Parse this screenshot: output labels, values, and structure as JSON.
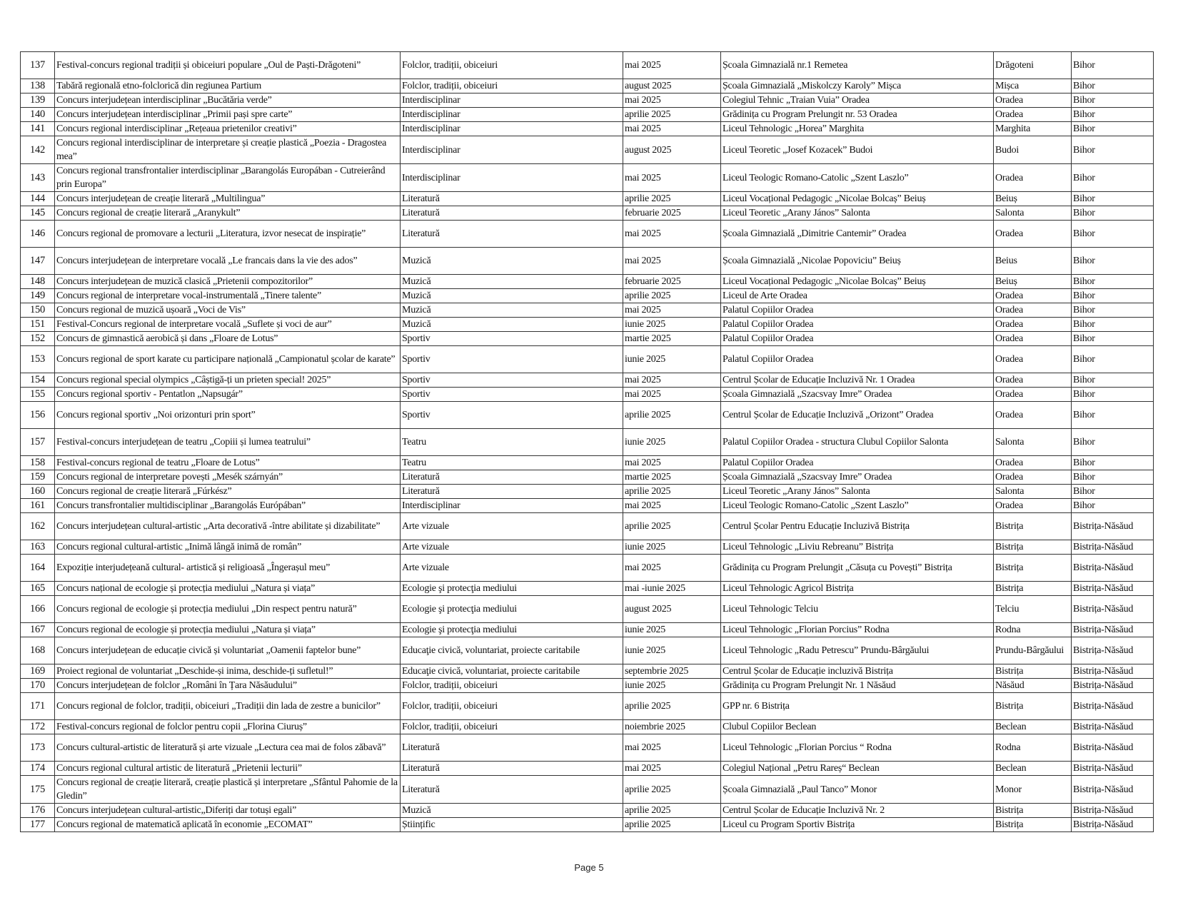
{
  "page": {
    "footer": "Page 5"
  },
  "rows": [
    [
      "137",
      "Festival-concurs regional tradiții și obiceiuri populare „Oul de Paști-Drăgoteni”",
      "Folclor, tradiții, obiceiuri",
      "mai 2025",
      "Școala Gimnazială nr.1 Remetea",
      "Drăgoteni",
      "Bihor"
    ],
    [
      "138",
      "Tabără regională etno-folclorică din regiunea Partium",
      "Folclor, tradiții, obiceiuri",
      "august 2025",
      "Școala Gimnazială „Miskolczy Karoly” Mișca",
      "Mișca",
      "Bihor"
    ],
    [
      "139",
      "Concurs interjudețean interdisciplinar „Bucătăria verde”",
      "Interdisciplinar",
      "mai 2025",
      "Colegiul Tehnic „Traian Vuia” Oradea",
      "Oradea",
      "Bihor"
    ],
    [
      "140",
      "Concurs interjudețean interdisciplinar „Primii pași spre carte”",
      "Interdisciplinar",
      "aprilie 2025",
      "Grădinița cu Program Prelungit nr. 53 Oradea",
      "Oradea",
      "Bihor"
    ],
    [
      "141",
      "Concurs regional interdisciplinar „Rețeaua prietenilor creativi”",
      "Interdisciplinar",
      "mai 2025",
      "Liceul Tehnologic „Horea” Marghita",
      "Marghita",
      "Bihor"
    ],
    [
      "142",
      "Concurs regional interdisciplinar de interpretare și creație plastică „Poezia - Dragostea mea”",
      "Interdisciplinar",
      "august 2025",
      "Liceul Teoretic „Josef Kozacek” Budoi",
      "Budoi",
      "Bihor"
    ],
    [
      "143",
      "Concurs regional transfrontalier interdisciplinar „Barangolás Europában - Cutreierând prin Europa”",
      "Interdisciplinar",
      "mai 2025",
      "Liceul Teologic Romano-Catolic „Szent Laszlo”",
      "Oradea",
      "Bihor"
    ],
    [
      "144",
      "Concurs interjudețean de creație literară „Multilingua”",
      "Literatură",
      "aprilie 2025",
      "Liceul Vocațional Pedagogic „Nicolae Bolcaș” Beiuș",
      "Beiuș",
      "Bihor"
    ],
    [
      "145",
      "Concurs regional de creație literară „Aranykult”",
      "Literatură",
      "februarie 2025",
      "Liceul Teoretic „Arany János” Salonta",
      "Salonta",
      "Bihor"
    ],
    [
      "146",
      "Concurs regional de promovare a lecturii „Literatura, izvor nesecat de inspirație”",
      "Literatură",
      "mai 2025",
      "Școala Gimnazială „Dimitrie Cantemir” Oradea",
      "Oradea",
      "Bihor"
    ],
    [
      "147",
      "Concurs interjudețean de interpretare vocală „Le francais dans la vie des ados”",
      "Muzică",
      "mai 2025",
      "Școala Gimnazială „Nicolae Popoviciu” Beiuș",
      "Beius",
      "Bihor"
    ],
    [
      "148",
      "Concurs interjudețean de muzică clasică „Prietenii compozitorilor”",
      "Muzică",
      "februarie 2025",
      "Liceul Vocațional Pedagogic „Nicolae Bolcaș” Beiuș",
      "Beiuș",
      "Bihor"
    ],
    [
      "149",
      "Concurs regional de interpretare vocal-instrumentală „Tinere talente”",
      "Muzică",
      "aprilie 2025",
      "Liceul de Arte Oradea",
      "Oradea",
      "Bihor"
    ],
    [
      "150",
      "Concurs regional de muzică ușoară „Voci de Vis”",
      "Muzică",
      "mai 2025",
      "Palatul Copiilor Oradea",
      "Oradea",
      "Bihor"
    ],
    [
      "151",
      "Festival-Concurs regional de interpretare vocală „Suflete și voci de aur”",
      "Muzică",
      "iunie 2025",
      "Palatul Copiilor Oradea",
      "Oradea",
      "Bihor"
    ],
    [
      "152",
      "Concurs de gimnastică aerobică și dans „Floare de Lotus”",
      "Sportiv",
      "martie 2025",
      "Palatul Copiilor Oradea",
      "Oradea",
      "Bihor"
    ],
    [
      "153",
      "Concurs regional de sport karate cu participare națională „Campionatul școlar de karate”",
      "Sportiv",
      "iunie 2025",
      "Palatul Copiilor Oradea",
      "Oradea",
      "Bihor"
    ],
    [
      "154",
      "Concurs regional special olympics „Câștigă-ți un prieten special! 2025”",
      "Sportiv",
      "mai 2025",
      "Centrul Școlar de Educație Incluzivă Nr. 1 Oradea",
      "Oradea",
      "Bihor"
    ],
    [
      "155",
      "Concurs regional sportiv - Pentatlon „Napsugár”",
      "Sportiv",
      "mai 2025",
      "Școala Gimnazială „Szacsvay Imre” Oradea",
      "Oradea",
      "Bihor"
    ],
    [
      "156",
      "Concurs regional sportiv „Noi orizonturi prin sport”",
      "Sportiv",
      "aprilie 2025",
      "Centrul  Școlar de Educație Incluzivă „Orizont” Oradea",
      "Oradea",
      "Bihor"
    ],
    [
      "157",
      "Festival-concurs interjudețean de teatru „Copiii și lumea teatrului”",
      "Teatru",
      "iunie 2025",
      "Palatul Copiilor Oradea - structura Clubul Copiilor Salonta",
      "Salonta",
      "Bihor"
    ],
    [
      "158",
      "Festival-concurs regional de teatru „Floare de Lotus”",
      "Teatru",
      "mai 2025",
      "Palatul Copiilor Oradea",
      "Oradea",
      "Bihor"
    ],
    [
      "159",
      "Concurs regional de interpretare povești „Mesék szárnyán”",
      "Literatură",
      "martie 2025",
      "Școala Gimnazială „Szacsvay Imre” Oradea",
      "Oradea",
      "Bihor"
    ],
    [
      "160",
      "Concurs regional de creație literară „Fúrkész”",
      "Literatură",
      "aprilie 2025",
      "Liceul Teoretic „Arany János” Salonta",
      "Salonta",
      "Bihor"
    ],
    [
      "161",
      "Concurs transfrontalier multidisciplinar „Barangolás Európában”",
      "Interdisciplinar",
      "mai 2025",
      "Liceul Teologic Romano-Catolic „Szent Laszlo”",
      "Oradea",
      "Bihor"
    ],
    [
      "162",
      "Concurs interjudețean cultural-artistic „Arta decorativă -între abilitate și dizabilitate”",
      "Arte vizuale",
      "aprilie 2025",
      "Centrul Școlar Pentru Educație Incluzivă Bistrița",
      "Bistrița",
      "Bistrița-Năsăud"
    ],
    [
      "163",
      "Concurs regional cultural-artistic „Inimă lângă inimă de român”",
      "Arte vizuale",
      "iunie 2025",
      "Liceul Tehnologic „Liviu Rebreanu” Bistrița",
      "Bistrița",
      "Bistrița-Năsăud"
    ],
    [
      "164",
      "Expoziție interjudețeană cultural- artistică și religioasă „Îngerașul meu”",
      "Arte vizuale",
      "mai 2025",
      "Grădinița cu Program Prelungit „Căsuța cu Povești” Bistrița",
      "Bistrița",
      "Bistrița-Năsăud"
    ],
    [
      "165",
      "Concurs național de ecologie și protecția mediului „Natura și viața”",
      "Ecologie şi protecţia mediului",
      "mai -iunie 2025",
      "Liceul Tehnologic Agricol Bistrița",
      "Bistrița",
      "Bistrița-Năsăud"
    ],
    [
      "166",
      "Concurs regional de ecologie și protecția mediului „Din respect pentru natură”",
      "Ecologie şi protecţia mediului",
      "august 2025",
      "Liceul Tehnologic Telciu",
      "Telciu",
      "Bistrița-Năsăud"
    ],
    [
      "167",
      "Concurs regional de ecologie și protecția mediului „Natura și viața”",
      "Ecologie şi protecţia mediului",
      "iunie 2025",
      "Liceul Tehnologic „Florian Porcius” Rodna",
      "Rodna",
      "Bistrița-Năsăud"
    ],
    [
      "168",
      "Concurs interjudețean de educație civică și voluntariat „Oamenii faptelor bune”",
      "Educaţie civică, voluntariat, proiecte caritabile",
      "iunie 2025",
      "Liceul Tehnologic „Radu Petrescu” Prundu-Bârgăului",
      "Prundu-Bârgăului",
      "Bistrița-Năsăud"
    ],
    [
      "169",
      "Proiect regional de voluntariat „Deschide-și inima, deschide-ți sufletul!”",
      "Educaţie civică, voluntariat, proiecte caritabile",
      "septembrie 2025",
      "Centrul Școlar de Educație incluzivă Bistrița",
      "Bistrița",
      "Bistrița-Năsăud"
    ],
    [
      "170",
      "Concurs interjudețean de folclor „Români în Țara Năsăudului”",
      "Folclor, tradiții, obiceiuri",
      "iunie 2025",
      "Grădinița cu Program Prelungit Nr. 1 Năsăud",
      "Năsăud",
      "Bistrița-Năsăud"
    ],
    [
      "171",
      "Concurs regional de folclor, tradiții, obiceiuri „Tradiții din lada de zestre a bunicilor”",
      "Folclor, tradiții, obiceiuri",
      "aprilie 2025",
      "GPP nr. 6 Bistrița",
      "Bistrița",
      "Bistrița-Năsăud"
    ],
    [
      "172",
      "Festival-concurs regional de folclor pentru copii „Florina Ciuruș”",
      "Folclor, tradiții, obiceiuri",
      "noiembrie 2025",
      "Clubul Copiilor Beclean",
      "Beclean",
      "Bistrița-Năsăud"
    ],
    [
      "173",
      "Concurs cultural-artistic de literatură și arte vizuale „Lectura cea mai de folos zăbavă”",
      "Literatură",
      "mai 2025",
      "Liceul  Tehnologic „Florian Porcius “ Rodna",
      "Rodna",
      "Bistrița-Năsăud"
    ],
    [
      "174",
      "Concurs regional cultural artistic de literatură „Prietenii lecturii”",
      "Literatură",
      "mai 2025",
      "Colegiul Național „Petru Rareș“ Beclean",
      "Beclean",
      "Bistrița-Năsăud"
    ],
    [
      "175",
      "Concurs regional de creație literară, creație plastică și interpretare „Sfântul Pahomie de la Gledin”",
      "Literatură",
      "aprilie 2025",
      "Școala Gimnazială „Paul Tanco” Monor",
      "Monor",
      "Bistrița-Năsăud"
    ],
    [
      "176",
      "Concurs interjudețean cultural-artistic„Diferiți dar totuși egali”",
      "Muzică",
      "aprilie 2025",
      "Centrul Școlar de Educație Incluzivă Nr. 2",
      "Bistrița",
      "Bistrița-Năsăud"
    ],
    [
      "177",
      "Concurs regional de matematică aplicată în economie „ECOMAT”",
      "Științific",
      "aprilie 2025",
      "Liceul cu Program Sportiv Bistrița",
      "Bistrița",
      "Bistrița-Năsăud"
    ]
  ]
}
